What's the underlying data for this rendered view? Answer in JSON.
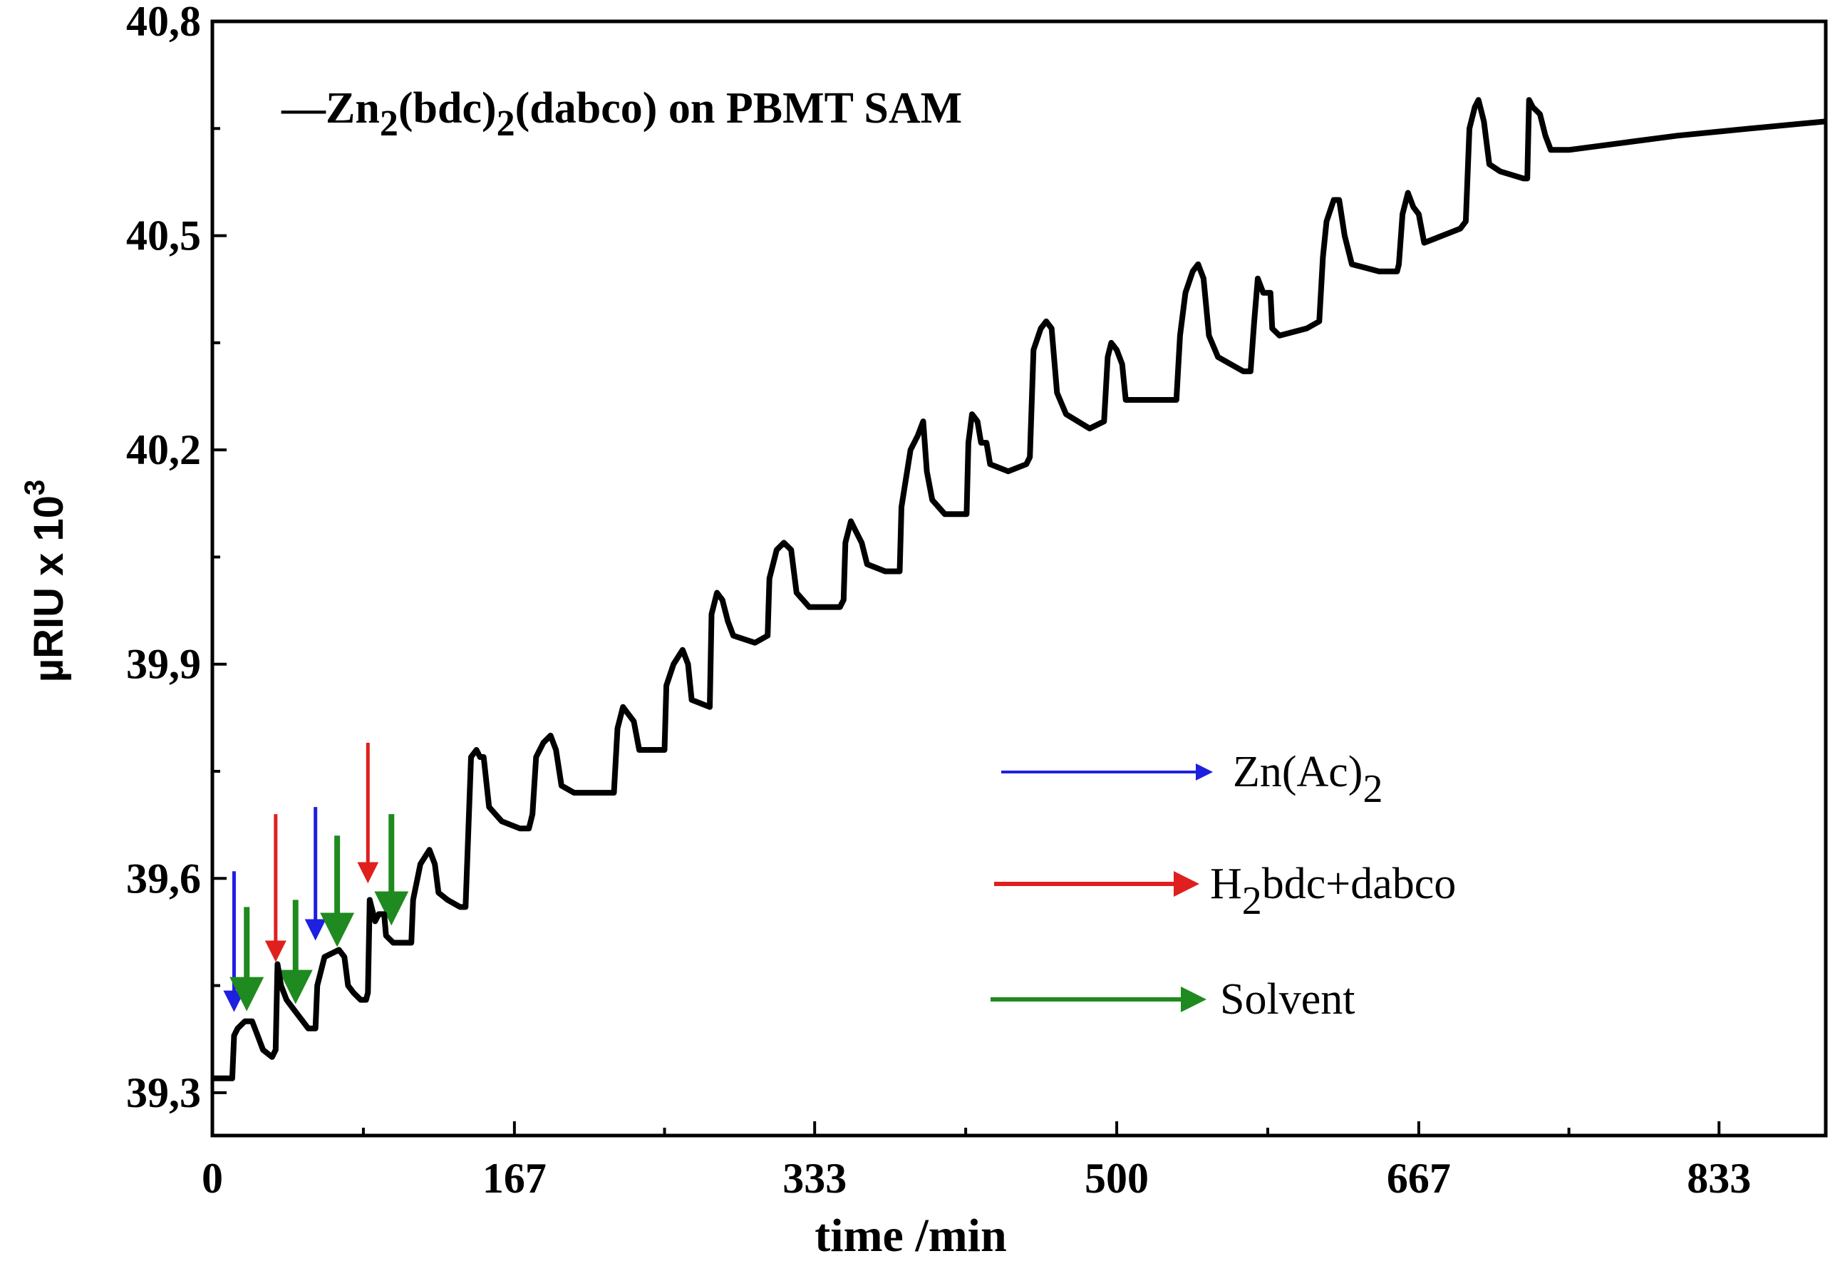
{
  "chart_data": {
    "type": "line",
    "title_prefix": "—",
    "title_segments": [
      {
        "text": "Zn",
        "sub": false
      },
      {
        "text": "2",
        "sub": true
      },
      {
        "text": "(bdc)",
        "sub": false
      },
      {
        "text": "2",
        "sub": true
      },
      {
        "text": "(dabco) on PBMT SAM",
        "sub": false
      }
    ],
    "xlabel": "time /min",
    "ylabel": "µRIU x 10",
    "ylabel_sup": "3",
    "xlim": [
      0,
      892
    ],
    "ylim": [
      39.24,
      40.8
    ],
    "x_ticks": [
      {
        "value": 0,
        "label": "0"
      },
      {
        "value": 167,
        "label": "167"
      },
      {
        "value": 333,
        "label": "333"
      },
      {
        "value": 500,
        "label": "500"
      },
      {
        "value": 667,
        "label": "667"
      },
      {
        "value": 833,
        "label": "833"
      }
    ],
    "y_ticks": [
      {
        "value": 39.3,
        "label": "39,3"
      },
      {
        "value": 39.6,
        "label": "39,6"
      },
      {
        "value": 39.9,
        "label": "39,9"
      },
      {
        "value": 40.2,
        "label": "40,2"
      },
      {
        "value": 40.5,
        "label": "40,5"
      },
      {
        "value": 40.8,
        "label": "40,8"
      }
    ],
    "series": [
      {
        "name": "Zn2(bdc)2(dabco) on PBMT SAM",
        "color": "#000000",
        "points": [
          [
            0,
            39.32
          ],
          [
            11,
            39.32
          ],
          [
            12,
            39.38
          ],
          [
            14,
            39.39
          ],
          [
            18,
            39.4
          ],
          [
            22,
            39.4
          ],
          [
            25,
            39.38
          ],
          [
            28,
            39.36
          ],
          [
            33,
            39.35
          ],
          [
            35,
            39.36
          ],
          [
            36,
            39.48
          ],
          [
            38,
            39.45
          ],
          [
            41,
            39.43
          ],
          [
            44,
            39.42
          ],
          [
            47,
            39.41
          ],
          [
            50,
            39.4
          ],
          [
            53,
            39.39
          ],
          [
            57,
            39.39
          ],
          [
            58,
            39.45
          ],
          [
            62,
            39.49
          ],
          [
            70,
            39.5
          ],
          [
            73,
            39.49
          ],
          [
            75,
            39.45
          ],
          [
            78,
            39.44
          ],
          [
            82,
            39.43
          ],
          [
            85,
            39.43
          ],
          [
            86,
            39.44
          ],
          [
            87,
            39.57
          ],
          [
            90,
            39.54
          ],
          [
            92,
            39.55
          ],
          [
            95,
            39.55
          ],
          [
            96,
            39.52
          ],
          [
            100,
            39.51
          ],
          [
            110,
            39.51
          ],
          [
            111,
            39.57
          ],
          [
            115,
            39.62
          ],
          [
            120,
            39.64
          ],
          [
            123,
            39.62
          ],
          [
            125,
            39.58
          ],
          [
            130,
            39.57
          ],
          [
            137,
            39.56
          ],
          [
            140,
            39.56
          ],
          [
            143,
            39.77
          ],
          [
            146,
            39.78
          ],
          [
            148,
            39.77
          ],
          [
            150,
            39.77
          ],
          [
            153,
            39.7
          ],
          [
            160,
            39.68
          ],
          [
            170,
            39.67
          ],
          [
            175,
            39.67
          ],
          [
            177,
            39.69
          ],
          [
            179,
            39.77
          ],
          [
            183,
            39.79
          ],
          [
            187,
            39.8
          ],
          [
            190,
            39.78
          ],
          [
            193,
            39.73
          ],
          [
            200,
            39.72
          ],
          [
            215,
            39.72
          ],
          [
            222,
            39.72
          ],
          [
            224,
            39.81
          ],
          [
            227,
            39.84
          ],
          [
            230,
            39.83
          ],
          [
            233,
            39.82
          ],
          [
            236,
            39.78
          ],
          [
            245,
            39.78
          ],
          [
            250,
            39.78
          ],
          [
            251,
            39.87
          ],
          [
            255,
            39.9
          ],
          [
            260,
            39.92
          ],
          [
            263,
            39.9
          ],
          [
            265,
            39.85
          ],
          [
            275,
            39.84
          ],
          [
            276,
            39.97
          ],
          [
            279,
            40.0
          ],
          [
            282,
            39.99
          ],
          [
            285,
            39.96
          ],
          [
            288,
            39.94
          ],
          [
            300,
            39.93
          ],
          [
            307,
            39.94
          ],
          [
            308,
            40.02
          ],
          [
            312,
            40.06
          ],
          [
            316,
            40.07
          ],
          [
            320,
            40.06
          ],
          [
            323,
            40.0
          ],
          [
            330,
            39.98
          ],
          [
            347,
            39.98
          ],
          [
            349,
            39.99
          ],
          [
            350,
            40.07
          ],
          [
            353,
            40.1
          ],
          [
            355,
            40.09
          ],
          [
            359,
            40.07
          ],
          [
            362,
            40.04
          ],
          [
            372,
            40.03
          ],
          [
            380,
            40.03
          ],
          [
            381,
            40.12
          ],
          [
            386,
            40.2
          ],
          [
            390,
            40.22
          ],
          [
            393,
            40.24
          ],
          [
            395,
            40.17
          ],
          [
            398,
            40.13
          ],
          [
            405,
            40.11
          ],
          [
            417,
            40.11
          ],
          [
            418,
            40.21
          ],
          [
            420,
            40.25
          ],
          [
            423,
            40.24
          ],
          [
            425,
            40.21
          ],
          [
            428,
            40.21
          ],
          [
            430,
            40.18
          ],
          [
            440,
            40.17
          ],
          [
            450,
            40.18
          ],
          [
            452,
            40.19
          ],
          [
            454,
            40.34
          ],
          [
            458,
            40.37
          ],
          [
            461,
            40.38
          ],
          [
            464,
            40.37
          ],
          [
            467,
            40.28
          ],
          [
            472,
            40.25
          ],
          [
            485,
            40.23
          ],
          [
            493,
            40.24
          ],
          [
            495,
            40.33
          ],
          [
            497,
            40.35
          ],
          [
            500,
            40.34
          ],
          [
            503,
            40.32
          ],
          [
            505,
            40.27
          ],
          [
            512,
            40.27
          ],
          [
            533,
            40.27
          ],
          [
            535,
            40.36
          ],
          [
            538,
            40.42
          ],
          [
            542,
            40.45
          ],
          [
            545,
            40.46
          ],
          [
            548,
            40.44
          ],
          [
            551,
            40.36
          ],
          [
            556,
            40.33
          ],
          [
            570,
            40.31
          ],
          [
            574,
            40.31
          ],
          [
            576,
            40.38
          ],
          [
            578,
            40.44
          ],
          [
            581,
            40.42
          ],
          [
            585,
            40.42
          ],
          [
            586,
            40.37
          ],
          [
            590,
            40.36
          ],
          [
            605,
            40.37
          ],
          [
            612,
            40.38
          ],
          [
            614,
            40.47
          ],
          [
            616,
            40.52
          ],
          [
            620,
            40.55
          ],
          [
            623,
            40.55
          ],
          [
            626,
            40.5
          ],
          [
            630,
            40.46
          ],
          [
            645,
            40.45
          ],
          [
            655,
            40.45
          ],
          [
            656,
            40.46
          ],
          [
            658,
            40.53
          ],
          [
            661,
            40.56
          ],
          [
            664,
            40.54
          ],
          [
            667,
            40.53
          ],
          [
            670,
            40.49
          ],
          [
            680,
            40.5
          ],
          [
            690,
            40.51
          ],
          [
            693,
            40.52
          ],
          [
            695,
            40.65
          ],
          [
            698,
            40.68
          ],
          [
            700,
            40.69
          ],
          [
            703,
            40.66
          ],
          [
            706,
            40.6
          ],
          [
            712,
            40.59
          ],
          [
            725,
            40.58
          ],
          [
            727,
            40.58
          ],
          [
            728,
            40.69
          ],
          [
            730,
            40.68
          ],
          [
            734,
            40.67
          ],
          [
            737,
            40.64
          ],
          [
            740,
            40.62
          ],
          [
            750,
            40.62
          ],
          [
            780,
            40.63
          ],
          [
            810,
            40.64
          ],
          [
            850,
            40.65
          ],
          [
            892,
            40.66
          ]
        ]
      }
    ],
    "legend": [
      {
        "color": "#1f1fe0",
        "label_main": "Zn(Ac)",
        "label_sub": "2",
        "label_sup_pre": ""
      },
      {
        "color": "#e01f1f",
        "label_main": "H",
        "label_sub": "2",
        "label_suffix": "bdc+dabco"
      },
      {
        "color": "#1f8a1f",
        "label_main": "Solvent",
        "label_sub": "",
        "label_suffix": ""
      }
    ],
    "annotation_arrows": [
      {
        "name": "zn-ac",
        "color": "#1f1fe0",
        "x": 12,
        "y_start": 39.61,
        "y_end": 39.42
      },
      {
        "name": "solvent",
        "color": "#1f8a1f",
        "x": 19,
        "y_start": 39.56,
        "y_end": 39.43
      },
      {
        "name": "h2bdc-dabco",
        "color": "#e01f1f",
        "x": 35,
        "y_start": 39.69,
        "y_end": 39.49
      },
      {
        "name": "solvent",
        "color": "#1f8a1f",
        "x": 46,
        "y_start": 39.57,
        "y_end": 39.44
      },
      {
        "name": "zn-ac",
        "color": "#1f1fe0",
        "x": 57,
        "y_start": 39.7,
        "y_end": 39.52
      },
      {
        "name": "solvent",
        "color": "#1f8a1f",
        "x": 69,
        "y_start": 39.66,
        "y_end": 39.52
      },
      {
        "name": "h2bdc-dabco",
        "color": "#e01f1f",
        "x": 86,
        "y_start": 39.79,
        "y_end": 39.6
      },
      {
        "name": "solvent",
        "color": "#1f8a1f",
        "x": 99,
        "y_start": 39.69,
        "y_end": 39.55
      }
    ]
  }
}
